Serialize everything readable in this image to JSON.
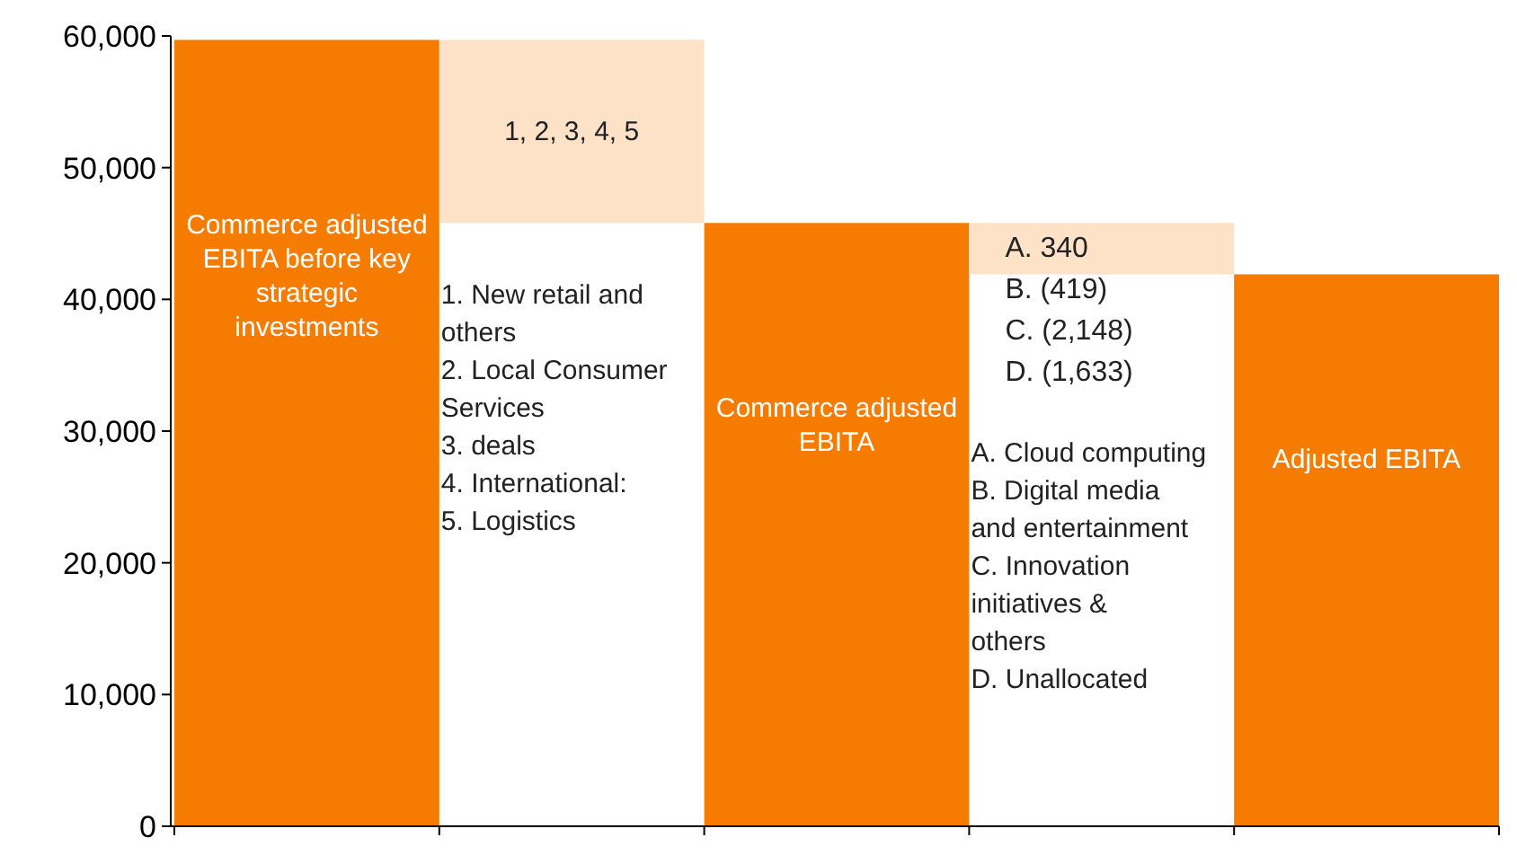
{
  "chart_data": {
    "type": "bar",
    "categories": [
      "Commerce adjusted EBITA before key strategic investments",
      "1, 2, 3, 4, 5",
      "Commerce adjusted EBITA",
      "A. 340\nB. (419)\nC. (2,148)\nD. (1,633)",
      "Adjusted EBITA"
    ],
    "values": [
      59700,
      -13900,
      45800,
      -3900,
      41900
    ],
    "base": [
      0,
      59700,
      0,
      45800,
      0
    ],
    "colors": [
      "#f57c00",
      "#fde2c8",
      "#f57c00",
      "#fde2c8",
      "#f57c00"
    ],
    "ylim": [
      0,
      60000
    ],
    "yticks": [
      {
        "value": 0,
        "label": "0"
      },
      {
        "value": 10000,
        "label": "10,000"
      },
      {
        "value": 20000,
        "label": "20,000"
      },
      {
        "value": 30000,
        "label": "30,000"
      },
      {
        "value": 40000,
        "label": "40,000"
      },
      {
        "value": 50000,
        "label": "50,000"
      },
      {
        "value": 60000,
        "label": "60,000"
      }
    ],
    "annotations": [
      "1. New retail and others\n2. Local Consumer Services\n3. deals\n4. International:\n5. Logistics",
      "A. Cloud computing\nB. Digital media and entertainment\nC. Innovation initiatives & others\nD. Unallocated"
    ]
  }
}
